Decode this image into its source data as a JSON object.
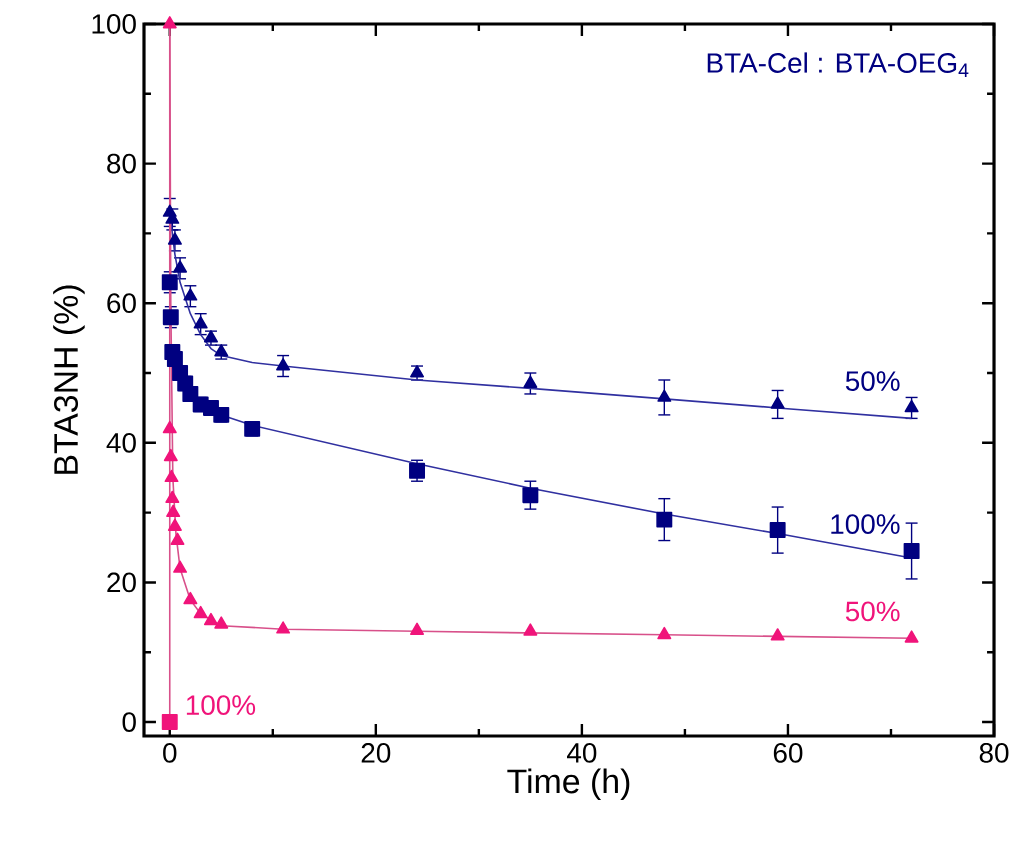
{
  "chart_data": {
    "type": "scatter",
    "xlabel": "Time (h)",
    "ylabel": "BTA3NH (%)",
    "legend_title": "BTA-Cel : BTA-OEG$_{4}$",
    "xlim": [
      -2.5,
      80
    ],
    "ylim": [
      -2,
      100
    ],
    "xticks": [
      0,
      20,
      40,
      60,
      80
    ],
    "yticks": [
      0,
      20,
      40,
      60,
      80,
      100
    ],
    "series": [
      {
        "marker": "triangle",
        "color": "#000080",
        "x": [
          0,
          0.25,
          0.5,
          1,
          2,
          3,
          4,
          5,
          11,
          24,
          35,
          48,
          59,
          72
        ],
        "values": [
          73,
          72,
          69,
          65,
          61,
          57,
          55,
          53,
          51,
          50,
          48.5,
          46.5,
          45.5,
          45
        ],
        "errors": [
          2,
          1.5,
          1.5,
          1.5,
          1.5,
          1.5,
          1,
          1,
          1.5,
          1,
          1.5,
          2.5,
          2,
          1.5
        ]
      },
      {
        "marker": "square",
        "color": "#000080",
        "x": [
          0,
          0.1,
          0.25,
          0.5,
          1,
          1.5,
          2,
          3,
          4,
          5,
          8,
          24,
          35,
          48,
          59,
          72
        ],
        "values": [
          63,
          58,
          53,
          52,
          50,
          48.5,
          47,
          45.5,
          45,
          44,
          42,
          36,
          32.5,
          29,
          27.5,
          24.5
        ],
        "errors": [
          1.5,
          1.5,
          1,
          1,
          1,
          1,
          1,
          1,
          1,
          1,
          1,
          1.5,
          2,
          3,
          3.3,
          4
        ]
      },
      {
        "marker": "triangle",
        "color": "#f0147a",
        "x": [
          0,
          0,
          0.1,
          0.17,
          0.25,
          0.33,
          0.5,
          0.75,
          1,
          2,
          3,
          4,
          5,
          11,
          24,
          35,
          48,
          59,
          72
        ],
        "values": [
          100,
          42,
          38,
          35,
          32,
          30,
          28,
          26,
          22,
          17.5,
          15.5,
          14.5,
          14,
          13.3,
          13.1,
          13,
          12.5,
          12.3,
          12
        ]
      },
      {
        "marker": "square",
        "color": "#f0147a",
        "x": [
          0
        ],
        "values": [
          0
        ]
      },
      {
        "type": "line",
        "marker": "none",
        "color": "#3030a0",
        "x": [
          0,
          0.5,
          1,
          2,
          3,
          4,
          5,
          8,
          11,
          24,
          35,
          48,
          59,
          72
        ],
        "values": [
          73,
          67,
          63,
          58.5,
          55.5,
          53.5,
          52.5,
          51.5,
          51,
          49,
          47.8,
          46.3,
          45,
          43.5
        ]
      },
      {
        "type": "line",
        "marker": "none",
        "color": "#3030a0",
        "x": [
          0,
          0.5,
          1,
          2,
          3,
          5,
          8,
          24,
          35,
          48,
          59,
          72
        ],
        "values": [
          52,
          50,
          48.5,
          46.5,
          45.5,
          44,
          42.5,
          37,
          33.5,
          29.8,
          27,
          23.5
        ]
      },
      {
        "type": "line",
        "marker": "none",
        "color": "#d8508a",
        "x": [
          0,
          0.1,
          0.3,
          0.6,
          1,
          2,
          3,
          5,
          11,
          24,
          48,
          72
        ],
        "values": [
          100,
          60,
          35,
          27,
          22,
          17.5,
          15.5,
          13.8,
          13.3,
          13,
          12.5,
          12
        ]
      },
      {
        "type": "line",
        "marker": "none",
        "color": "#d8508a",
        "x": [
          0,
          0
        ],
        "values": [
          100,
          0
        ]
      }
    ],
    "annotations": [
      "50%",
      "100%",
      "50%",
      "100%"
    ]
  }
}
